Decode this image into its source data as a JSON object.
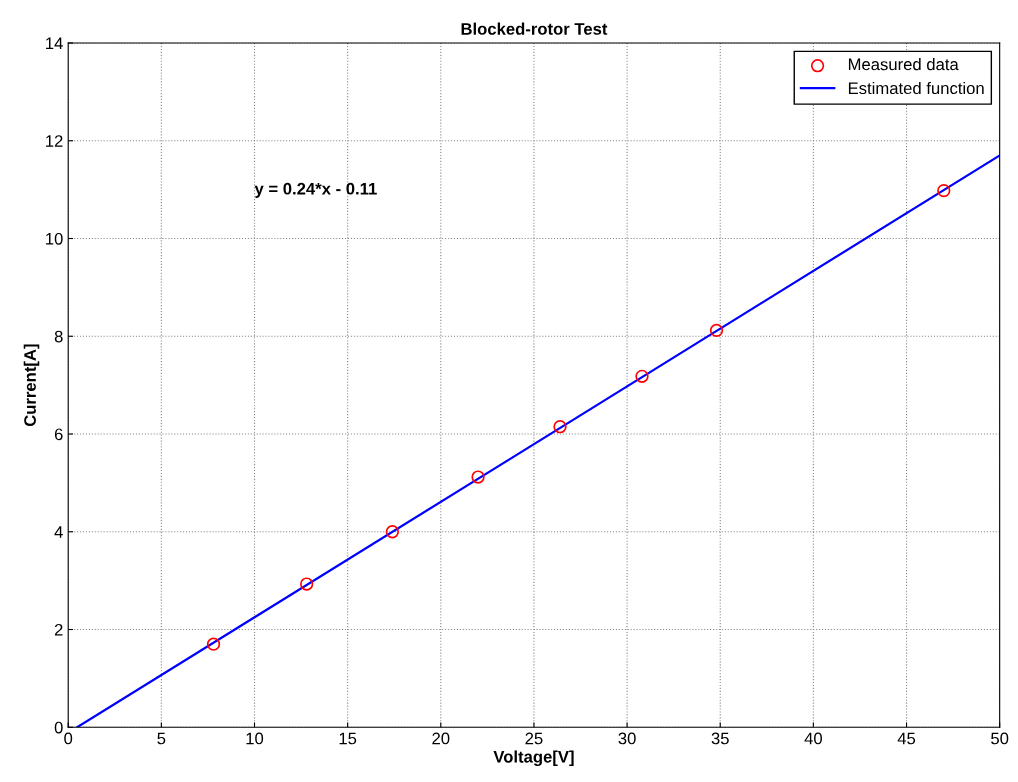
{
  "chart_data": {
    "type": "scatter",
    "title": "Blocked-rotor Test",
    "xlabel": "Voltage[V]",
    "ylabel": "Current[A]",
    "series": [
      {
        "name": "Measured data",
        "color": "#ff0000",
        "marker": "circle",
        "x": [
          7.8,
          12.8,
          17.4,
          22.0,
          26.4,
          30.8,
          34.8,
          47.0
        ],
        "values": [
          1.7,
          2.93,
          4.0,
          5.12,
          6.15,
          7.18,
          8.12,
          10.98
        ]
      },
      {
        "name": "Estimated function",
        "type": "line",
        "color": "#0000ff",
        "marker": "none",
        "line_style": "solid",
        "x": [
          0.48,
          50
        ],
        "values": [
          0,
          11.7
        ]
      }
    ],
    "annotations": [
      "y = 0.24*x - 0.11"
    ],
    "xlim": [
      0,
      50
    ],
    "xticks": [
      0,
      5,
      10,
      15,
      20,
      25,
      30,
      35,
      40,
      45,
      50
    ],
    "ylim": [
      0,
      14
    ],
    "yticks": [
      0,
      2,
      4,
      6,
      8,
      10,
      12,
      14
    ],
    "grid": true,
    "legend": "top right"
  }
}
